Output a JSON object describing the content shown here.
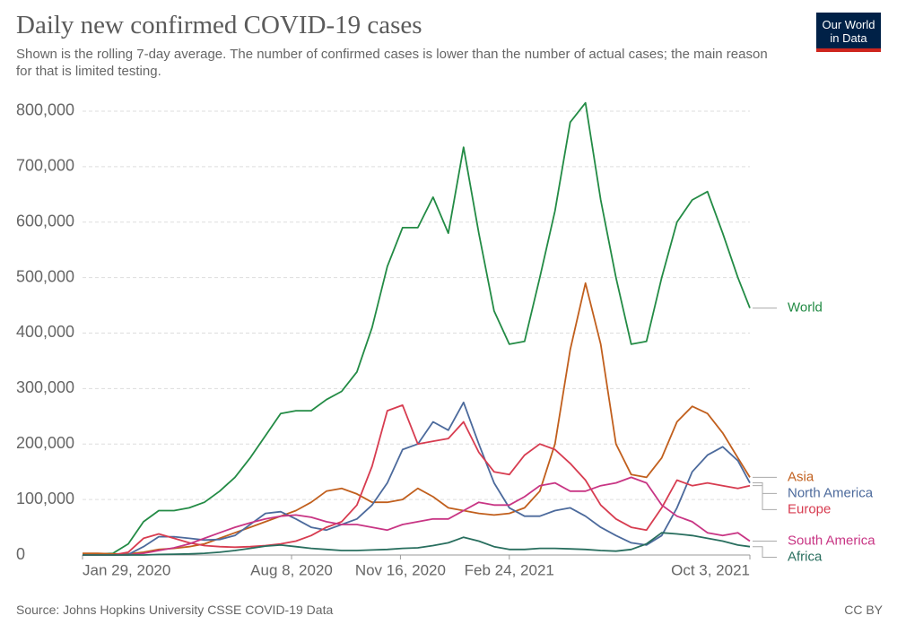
{
  "logo": [
    "Our World",
    "in Data"
  ],
  "chart_data": {
    "type": "line",
    "title": "Daily new confirmed COVID-19 cases",
    "subtitle": "Shown is the rolling 7-day average. The number of confirmed cases is lower than the number of actual cases; the main reason for that is limited testing.",
    "source": "Source: Johns Hopkins University CSSE COVID-19 Data",
    "license": "CC BY",
    "x": [
      "2020-01-29",
      "2020-02-12",
      "2020-02-26",
      "2020-03-11",
      "2020-03-25",
      "2020-04-08",
      "2020-04-22",
      "2020-05-06",
      "2020-05-20",
      "2020-06-03",
      "2020-06-17",
      "2020-07-01",
      "2020-07-15",
      "2020-07-29",
      "2020-08-12",
      "2020-08-26",
      "2020-09-09",
      "2020-09-23",
      "2020-10-07",
      "2020-10-21",
      "2020-11-04",
      "2020-11-18",
      "2020-12-02",
      "2020-12-16",
      "2020-12-30",
      "2021-01-13",
      "2021-01-27",
      "2021-02-10",
      "2021-02-24",
      "2021-03-10",
      "2021-03-24",
      "2021-04-07",
      "2021-04-21",
      "2021-05-05",
      "2021-05-19",
      "2021-06-02",
      "2021-06-16",
      "2021-06-30",
      "2021-07-14",
      "2021-07-28",
      "2021-08-11",
      "2021-08-25",
      "2021-09-08",
      "2021-09-22",
      "2021-10-03"
    ],
    "series": [
      {
        "name": "World",
        "color": "#238b45",
        "values": [
          0,
          2000,
          3000,
          20000,
          60000,
          80000,
          80000,
          85000,
          95000,
          115000,
          140000,
          175000,
          215000,
          255000,
          260000,
          260000,
          280000,
          295000,
          330000,
          410000,
          520000,
          590000,
          590000,
          645000,
          580000,
          735000,
          580000,
          440000,
          380000,
          385000,
          500000,
          620000,
          780000,
          815000,
          640000,
          500000,
          380000,
          385000,
          500000,
          600000,
          640000,
          655000,
          580000,
          500000,
          445000
        ]
      },
      {
        "name": "Asia",
        "color": "#c15f1d",
        "values": [
          3000,
          3000,
          2000,
          2000,
          5000,
          10000,
          12000,
          15000,
          20000,
          30000,
          40000,
          50000,
          60000,
          70000,
          80000,
          95000,
          115000,
          120000,
          110000,
          95000,
          95000,
          100000,
          120000,
          105000,
          85000,
          80000,
          75000,
          72000,
          75000,
          85000,
          115000,
          200000,
          370000,
          490000,
          380000,
          200000,
          145000,
          140000,
          175000,
          240000,
          268000,
          255000,
          220000,
          175000,
          140000
        ]
      },
      {
        "name": "North America",
        "color": "#4c6a9c",
        "values": [
          0,
          0,
          0,
          1000,
          15000,
          33000,
          33000,
          30000,
          27000,
          28000,
          35000,
          55000,
          75000,
          78000,
          65000,
          50000,
          45000,
          55000,
          65000,
          90000,
          130000,
          190000,
          200000,
          240000,
          225000,
          275000,
          200000,
          130000,
          85000,
          70000,
          70000,
          80000,
          85000,
          70000,
          50000,
          35000,
          22000,
          18000,
          35000,
          85000,
          150000,
          180000,
          195000,
          170000,
          130000
        ]
      },
      {
        "name": "Europe",
        "color": "#d73c50",
        "values": [
          0,
          0,
          0,
          5000,
          30000,
          38000,
          30000,
          22000,
          17000,
          15000,
          14000,
          15000,
          17000,
          20000,
          25000,
          35000,
          50000,
          60000,
          90000,
          160000,
          260000,
          270000,
          200000,
          205000,
          210000,
          240000,
          185000,
          150000,
          145000,
          180000,
          200000,
          190000,
          165000,
          135000,
          90000,
          65000,
          50000,
          45000,
          85000,
          135000,
          125000,
          130000,
          125000,
          120000,
          125000
        ]
      },
      {
        "name": "South America",
        "color": "#c83584",
        "values": [
          0,
          0,
          0,
          0,
          3000,
          8000,
          13000,
          20000,
          30000,
          40000,
          50000,
          58000,
          65000,
          70000,
          72000,
          68000,
          60000,
          55000,
          55000,
          50000,
          45000,
          55000,
          60000,
          65000,
          65000,
          80000,
          95000,
          90000,
          90000,
          105000,
          125000,
          130000,
          115000,
          115000,
          125000,
          130000,
          140000,
          130000,
          90000,
          70000,
          60000,
          40000,
          35000,
          40000,
          25000
        ]
      },
      {
        "name": "Africa",
        "color": "#286e5e",
        "values": [
          0,
          0,
          0,
          0,
          0,
          1000,
          1500,
          2000,
          3000,
          5000,
          8000,
          12000,
          16000,
          18000,
          15000,
          12000,
          10000,
          8000,
          8000,
          9000,
          10000,
          12000,
          13000,
          17000,
          22000,
          32000,
          25000,
          15000,
          10000,
          10000,
          12000,
          12000,
          11000,
          10000,
          8000,
          7000,
          10000,
          20000,
          40000,
          38000,
          35000,
          30000,
          25000,
          18000,
          15000
        ]
      }
    ],
    "xlim": [
      "2020-01-29",
      "2021-10-03"
    ],
    "xticks": [
      {
        "value": "2020-01-29",
        "label": "Jan 29, 2020"
      },
      {
        "value": "2020-08-08",
        "label": "Aug 8, 2020"
      },
      {
        "value": "2020-11-16",
        "label": "Nov 16, 2020"
      },
      {
        "value": "2021-02-24",
        "label": "Feb 24, 2021"
      },
      {
        "value": "2021-10-03",
        "label": "Oct 3, 2021"
      }
    ],
    "ylim": [
      0,
      830000
    ],
    "yticks": [
      0,
      {
        "value": 100000,
        "label": "100,000"
      },
      {
        "value": 200000,
        "label": "200,000"
      },
      {
        "value": 300000,
        "label": "300,000"
      },
      {
        "value": 400000,
        "label": "400,000"
      },
      {
        "value": 500000,
        "label": "500,000"
      },
      {
        "value": 600000,
        "label": "600,000"
      },
      {
        "value": 700000,
        "label": "700,000"
      },
      {
        "value": 800000,
        "label": "800,000"
      }
    ],
    "grid": true
  }
}
